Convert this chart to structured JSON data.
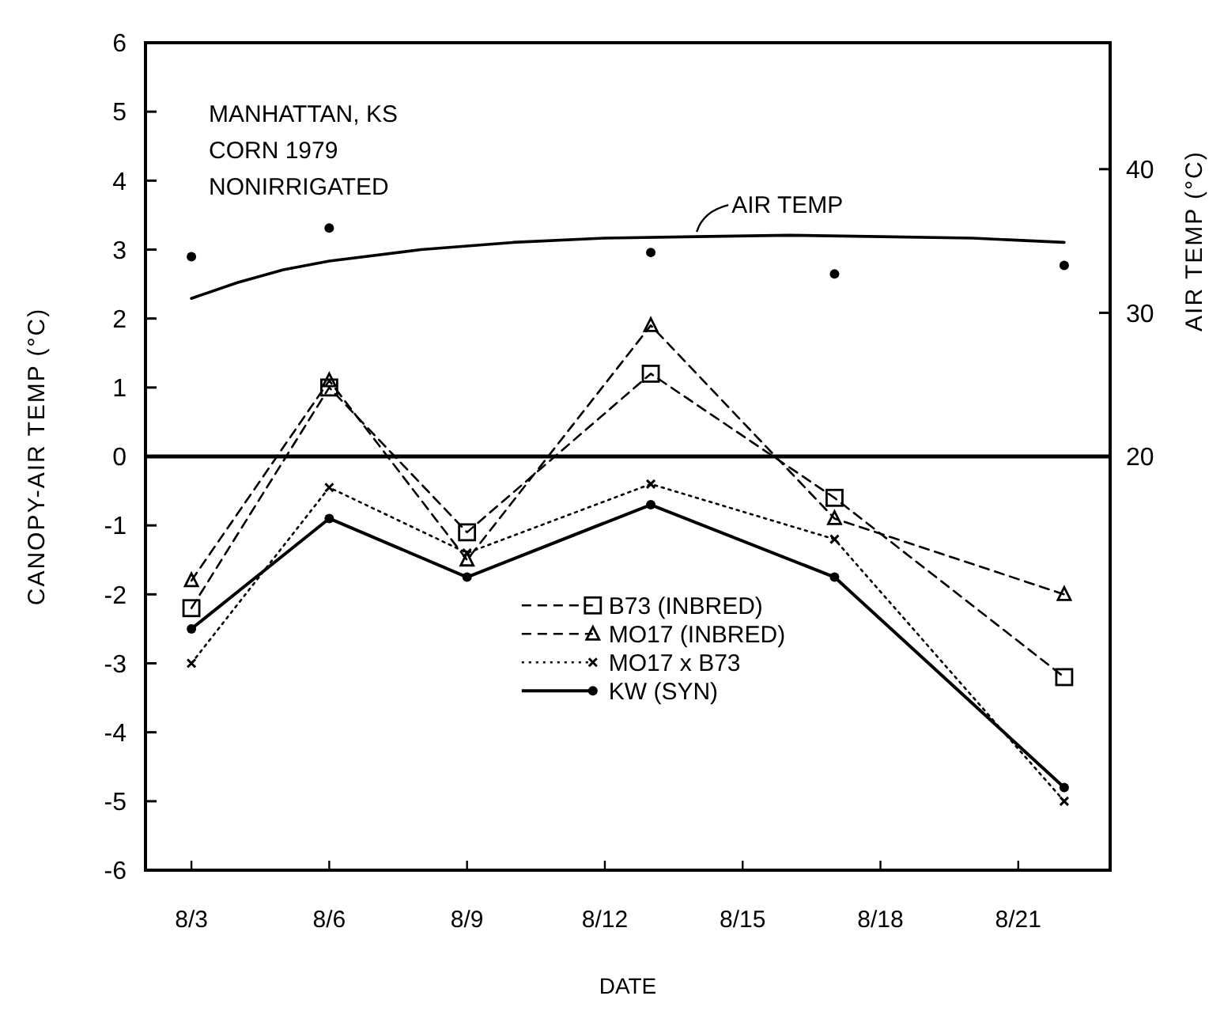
{
  "chart_data": {
    "type": "line",
    "xlabel": "DATE",
    "ylabel": "CANOPY-AIR TEMP (°C)",
    "y2label": "AIR TEMP (°C)",
    "annotations": [
      "MANHATTAN, KS",
      "CORN 1979",
      "NONIRRIGATED"
    ],
    "x": [
      "--08-03",
      "--08-06",
      "--08-09",
      "--08-13",
      "--08-17",
      "--08-22"
    ],
    "xlim": [
      "--08-02",
      "--08-23"
    ],
    "xticks": [
      {
        "value": "--08-03",
        "label": "8/3"
      },
      {
        "value": "--08-06",
        "label": "8/6"
      },
      {
        "value": "--08-09",
        "label": "8/9"
      },
      {
        "value": "--08-12",
        "label": "8/12"
      },
      {
        "value": "--08-15",
        "label": "8/15"
      },
      {
        "value": "--08-18",
        "label": "8/18"
      },
      {
        "value": "--08-21",
        "label": "8/21"
      }
    ],
    "ylim": [
      -6,
      6
    ],
    "yticks": [
      -6,
      -5,
      -4,
      -3,
      -2,
      -1,
      0,
      1,
      2,
      3,
      4,
      5,
      6
    ],
    "y2lim": [
      -8.8,
      48.8
    ],
    "y2ticks": [
      20,
      30,
      40
    ],
    "grid": false,
    "legend": "center",
    "ref_lines": [
      {
        "axis": "y",
        "value": 0
      }
    ],
    "series": [
      {
        "name": "B73 (INBRED)",
        "color": "#000000",
        "marker": "square",
        "line_style": "dashed",
        "values": [
          -2.2,
          1.0,
          -1.1,
          1.2,
          -0.6,
          -3.2
        ]
      },
      {
        "name": "MO17 (INBRED)",
        "color": "#000000",
        "marker": "triangle",
        "line_style": "dashed",
        "values": [
          -1.8,
          1.1,
          -1.5,
          1.9,
          -0.9,
          -2.0
        ]
      },
      {
        "name": "MO17 x B73",
        "color": "#000000",
        "marker": "cross",
        "line_style": "dotted",
        "values": [
          -3.0,
          -0.45,
          -1.4,
          -0.4,
          -1.2,
          -5.0
        ]
      },
      {
        "name": "KW (SYN)",
        "color": "#000000",
        "marker": "circle",
        "line_style": "solid",
        "values": [
          -2.5,
          -0.9,
          -1.75,
          -0.7,
          -1.75,
          -4.8
        ]
      },
      {
        "name": "AIR TEMP",
        "type": "line",
        "axis": "y2",
        "color": "#000000",
        "marker": "none",
        "line_style": "solid",
        "x": [
          "--08-03",
          "--08-04",
          "--08-05",
          "--08-06",
          "--08-08",
          "--08-10",
          "--08-12",
          "--08-14",
          "--08-16",
          "--08-18",
          "--08-20",
          "--08-22"
        ],
        "values": [
          31.0,
          32.1,
          33.0,
          33.6,
          34.4,
          34.9,
          35.2,
          35.3,
          35.4,
          35.3,
          35.2,
          34.9
        ]
      },
      {
        "type": "scatter",
        "axis": "y2",
        "color": "#000000",
        "marker": "circle",
        "values": [
          33.9,
          35.9,
          null,
          34.2,
          32.7,
          33.3
        ]
      }
    ]
  }
}
